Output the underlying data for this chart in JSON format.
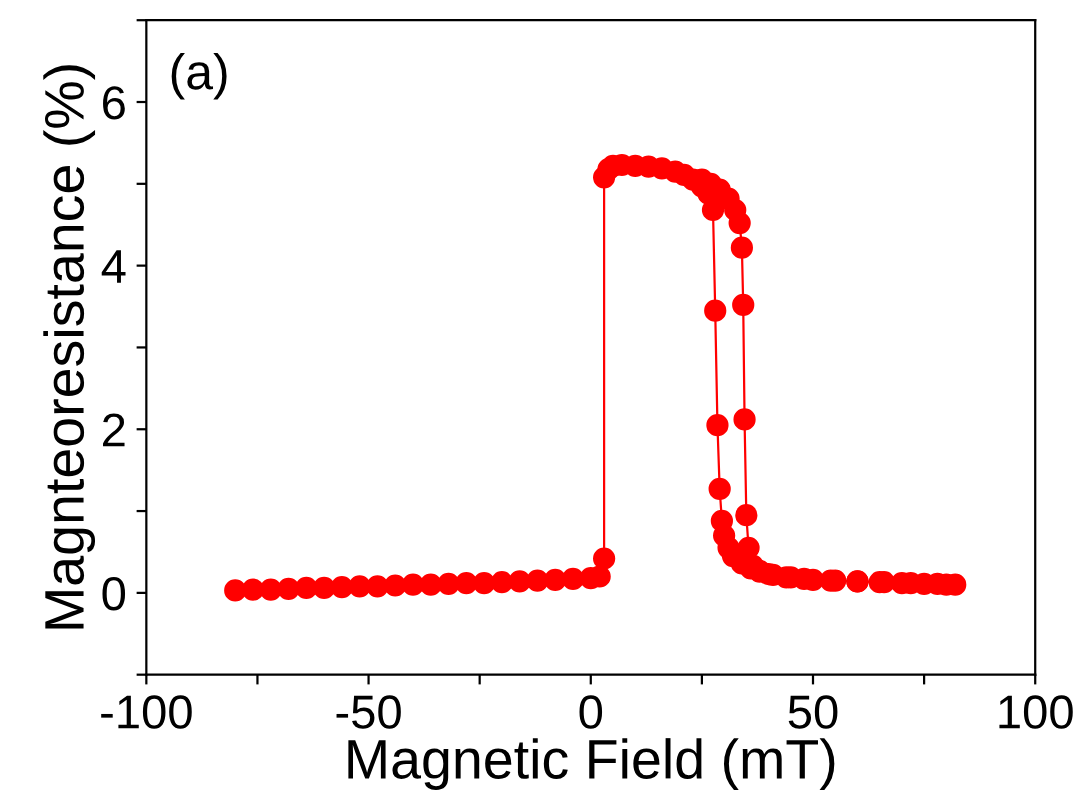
{
  "chart_data": {
    "type": "line",
    "xlabel": "Magnetic Field (mT)",
    "ylabel": "Magnteoresistance (%)",
    "annotations": [
      "(a)"
    ],
    "xlim": [
      -100,
      100
    ],
    "xticks": [
      -100,
      {
        "value": -75,
        "label": null
      },
      -50,
      {
        "value": -25,
        "label": null
      },
      0,
      {
        "value": 25,
        "label": null
      },
      50,
      {
        "value": 75,
        "label": null
      },
      100
    ],
    "ylim": [
      -1,
      7
    ],
    "yticks": [
      {
        "value": -1,
        "label": null
      },
      0,
      {
        "value": 1,
        "label": null
      },
      2,
      {
        "value": 3,
        "label": null
      },
      4,
      {
        "value": 5,
        "label": null
      },
      6,
      {
        "value": 7,
        "label": null
      }
    ],
    "grid": false,
    "marker": "circle",
    "line_style": "solid",
    "series": [
      {
        "color": "#ff0000",
        "x": [
          -80,
          -76,
          -72,
          -68,
          -64,
          -60,
          -56,
          -52,
          -48,
          -44,
          -40,
          -36,
          -32,
          -28,
          -24,
          -20,
          -16,
          -12,
          -8,
          -4,
          0,
          2,
          3,
          3,
          4,
          5,
          7,
          10,
          13,
          16,
          19,
          21,
          23,
          25,
          26.5,
          27.5,
          28,
          28.5,
          29,
          29.5,
          30,
          31,
          32,
          34,
          36,
          38,
          41,
          45,
          50,
          55,
          60,
          65,
          70,
          75,
          80,
          82,
          78,
          72,
          66,
          60,
          54,
          48,
          44,
          40,
          38,
          36.5,
          35.5,
          35,
          34.6,
          34.3,
          34,
          33.5,
          32.5,
          31,
          29,
          27,
          25
        ],
        "values": [
          0.03,
          0.04,
          0.04,
          0.05,
          0.06,
          0.06,
          0.07,
          0.08,
          0.08,
          0.09,
          0.1,
          0.1,
          0.11,
          0.12,
          0.12,
          0.13,
          0.14,
          0.15,
          0.16,
          0.17,
          0.18,
          0.2,
          0.42,
          5.08,
          5.18,
          5.22,
          5.23,
          5.22,
          5.21,
          5.19,
          5.15,
          5.11,
          5.05,
          4.97,
          4.88,
          4.68,
          3.45,
          2.05,
          1.27,
          0.88,
          0.7,
          0.55,
          0.45,
          0.36,
          0.3,
          0.26,
          0.22,
          0.19,
          0.16,
          0.15,
          0.14,
          0.13,
          0.12,
          0.11,
          0.1,
          0.1,
          0.11,
          0.12,
          0.13,
          0.14,
          0.15,
          0.17,
          0.19,
          0.23,
          0.27,
          0.33,
          0.55,
          0.95,
          2.12,
          3.52,
          4.22,
          4.52,
          4.68,
          4.82,
          4.93,
          5.0,
          5.05
        ]
      }
    ]
  }
}
